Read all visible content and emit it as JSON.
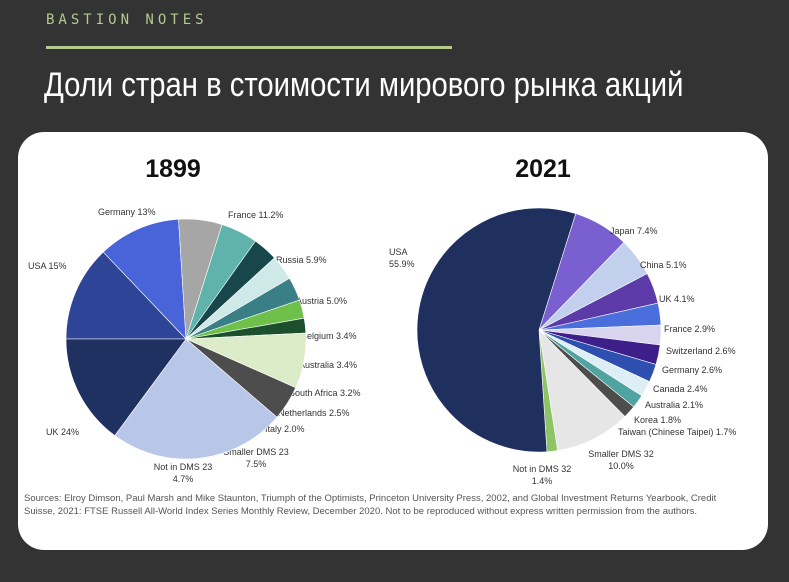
{
  "header": {
    "brand": "BASTION NOTES",
    "title": "Доли стран в стоимости мирового рынка акций"
  },
  "colors": {
    "background": "#333333",
    "accent": "#b3c98f"
  },
  "chart_data": [
    {
      "type": "pie",
      "title": "1899",
      "slices": [
        {
          "label": "Germany 13%",
          "value": 13,
          "color": "#2e4496"
        },
        {
          "label": "France 11.2%",
          "value": 11.2,
          "color": "#4964d8"
        },
        {
          "label": "Russia 5.9%",
          "value": 5.9,
          "color": "#a6a6a6"
        },
        {
          "label": "Austria 5.0%",
          "value": 5.0,
          "color": "#5fb3aa"
        },
        {
          "label": "Belgium 3.4%",
          "value": 3.4,
          "color": "#17474a"
        },
        {
          "label": "Australia 3.4%",
          "value": 3.4,
          "color": "#cfe8e8"
        },
        {
          "label": "South Africa 3.2%",
          "value": 3.2,
          "color": "#3a7e86"
        },
        {
          "label": "Netherlands 2.5%",
          "value": 2.5,
          "color": "#6ec04a"
        },
        {
          "label": "Italy 2.0%",
          "value": 2.0,
          "color": "#1c4f2c"
        },
        {
          "label": "Smaller DMS 23",
          "value_label": "7.5%",
          "value": 7.5,
          "color": "#dcecc8"
        },
        {
          "label": "Not in DMS 23",
          "value_label": "4.7%",
          "value": 4.7,
          "color": "#4d4d4d"
        },
        {
          "label": "UK 24%",
          "value": 24,
          "color": "#b8c6e8"
        },
        {
          "label": "USA 15%",
          "value": 15,
          "color": "#1f3160"
        }
      ]
    },
    {
      "type": "pie",
      "title": "2021",
      "slices": [
        {
          "label": "Japan 7.4%",
          "value": 7.4,
          "color": "#7a5fd0"
        },
        {
          "label": "China 5.1%",
          "value": 5.1,
          "color": "#c2d0ee"
        },
        {
          "label": "UK 4.1%",
          "value": 4.1,
          "color": "#5c3aa8"
        },
        {
          "label": "France 2.9%",
          "value": 2.9,
          "color": "#4a6fdc"
        },
        {
          "label": "Switzerland 2.6%",
          "value": 2.6,
          "color": "#d8d4ee"
        },
        {
          "label": "Germany 2.6%",
          "value": 2.6,
          "color": "#3e1f8a"
        },
        {
          "label": "Canada 2.4%",
          "value": 2.4,
          "color": "#2f4fb0"
        },
        {
          "label": "Australia 2.1%",
          "value": 2.1,
          "color": "#ddeef4"
        },
        {
          "label": "Korea 1.8%",
          "value": 1.8,
          "color": "#4fa3a0"
        },
        {
          "label": "Taiwan (Chinese Taipei) 1.7%",
          "value": 1.7,
          "color": "#4d4d4d"
        },
        {
          "label": "Smaller DMS 32",
          "value_label": "10.0%",
          "value": 10.0,
          "color": "#e6e6e6"
        },
        {
          "label": "Not in DMS 32",
          "value_label": "1.4%",
          "value": 1.4,
          "color": "#8cc466"
        },
        {
          "label": "USA",
          "value_label": "55.9%",
          "value": 55.9,
          "color": "#1f2f5e"
        }
      ]
    }
  ],
  "source": "Sources: Elroy Dimson, Paul Marsh and Mike Staunton, Triumph of the Optimists, Princeton University Press, 2002, and Global Investment Returns Yearbook, Credit Suisse, 2021: FTSE Russell All-World Index Series Monthly Review, December 2020. Not to be reproduced without express written permission from the authors."
}
